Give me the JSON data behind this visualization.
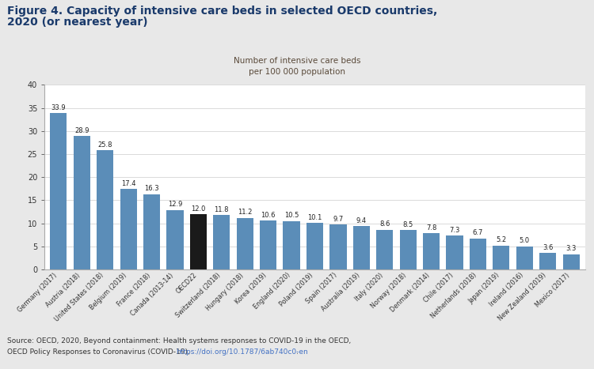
{
  "categories": [
    "Germany (2017)",
    "Austria (2018)",
    "United States (2018)",
    "Belgium (2019)",
    "France (2018)",
    "Canada (2013-14)",
    "OECD22",
    "Switzerland (2018)",
    "Hungary (2018)",
    "Korea (2019)",
    "England (2020)",
    "Poland (2019)",
    "Spain (2017)",
    "Australia (2019)",
    "Italy (2020)",
    "Norway (2018)",
    "Denmark (2014)",
    "Chile (2017)",
    "Netherlands (2018)",
    "Japan (2019)",
    "Ireland (2016)",
    "New Zealand (2019)",
    "Mexico (2017)"
  ],
  "values": [
    33.9,
    28.9,
    25.8,
    17.4,
    16.3,
    12.9,
    12.0,
    11.8,
    11.2,
    10.6,
    10.5,
    10.1,
    9.7,
    9.4,
    8.6,
    8.5,
    7.8,
    7.3,
    6.7,
    5.2,
    5.0,
    3.6,
    3.3
  ],
  "bar_colors": [
    "#5b8db8",
    "#5b8db8",
    "#5b8db8",
    "#5b8db8",
    "#5b8db8",
    "#5b8db8",
    "#1a1a1a",
    "#5b8db8",
    "#5b8db8",
    "#5b8db8",
    "#5b8db8",
    "#5b8db8",
    "#5b8db8",
    "#5b8db8",
    "#5b8db8",
    "#5b8db8",
    "#5b8db8",
    "#5b8db8",
    "#5b8db8",
    "#5b8db8",
    "#5b8db8",
    "#5b8db8",
    "#5b8db8"
  ],
  "title_line1": "Figure 4. Capacity of intensive care beds in selected OECD countries,",
  "title_line2": "2020 (or nearest year)",
  "chart_title": "Number of intensive care beds\nper 100 000 population",
  "ylim": [
    0,
    40
  ],
  "yticks": [
    0,
    5,
    10,
    15,
    20,
    25,
    30,
    35,
    40
  ],
  "background_color": "#e8e8e8",
  "plot_bg_color": "#ffffff",
  "source_text1": "Source: OECD, 2020, Beyond containment: Health systems responses to COVID-19 in the OECD,",
  "source_text2": "OECD Policy Responses to Coronavirus (COVID-19), ",
  "source_link": "https://doi.org/10.1787/6ab740c0-en",
  "source_text3": ".",
  "title_color": "#1a3a6b",
  "chart_title_color": "#5a4a3a",
  "label_fontsize": 6.0,
  "ytick_fontsize": 7.0,
  "xtick_fontsize": 5.8
}
